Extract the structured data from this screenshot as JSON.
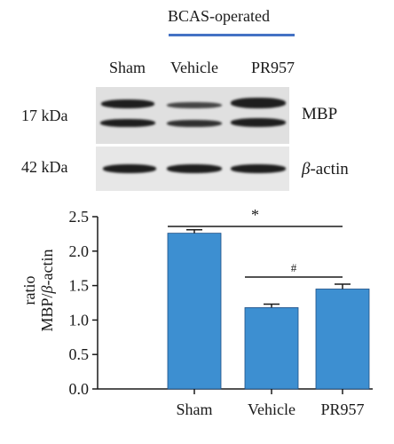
{
  "blot": {
    "group_label": "BCAS-operated",
    "group_line_color": "#4472c4",
    "lanes": [
      "Sham",
      "Vehicle",
      "PR957"
    ],
    "markers": [
      "17 kDa",
      "42 kDa"
    ],
    "proteins": {
      "mbp": "MBP",
      "actin_symbol": "β",
      "actin_rest": "-actin"
    }
  },
  "chart_data": {
    "type": "bar",
    "categories": [
      "Sham",
      "Vehicle",
      "PR957"
    ],
    "values": [
      2.26,
      1.18,
      1.45
    ],
    "errors": [
      0.05,
      0.05,
      0.07
    ],
    "ylabel_line1": "ratio",
    "ylabel_line2_prefix": "MBP/",
    "ylabel_line2_symbol": "β",
    "ylabel_line2_suffix": "-actin",
    "ylim": [
      0,
      2.5
    ],
    "yticks": [
      "0.0",
      "0.5",
      "1.0",
      "1.5",
      "2.0",
      "2.5"
    ],
    "bar_color": "#3d8fd1",
    "grid": false,
    "significance": [
      {
        "from": 0,
        "to": 2,
        "label": "*"
      },
      {
        "from": 1,
        "to": 2,
        "label": "#"
      }
    ]
  }
}
